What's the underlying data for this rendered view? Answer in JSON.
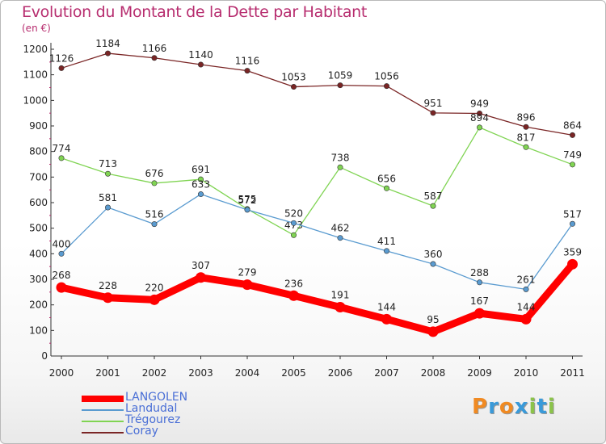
{
  "header": {
    "title": "Evolution du Montant de la Dette par Habitant",
    "subtitle": "(en €)"
  },
  "chart_data": {
    "type": "line",
    "title": "Evolution du Montant de la Dette par Habitant",
    "ylabel": "(en €)",
    "xlabel": "",
    "categories": [
      "2000",
      "2001",
      "2002",
      "2003",
      "2004",
      "2005",
      "2006",
      "2007",
      "2008",
      "2009",
      "2010",
      "2011"
    ],
    "ylim": [
      0,
      1200
    ],
    "yticks": [
      0,
      100,
      200,
      300,
      400,
      500,
      600,
      700,
      800,
      900,
      1000,
      1100,
      1200
    ],
    "grid": false,
    "legend_position": "bottom-left",
    "series": [
      {
        "name": "Coray",
        "color": "#7a2525",
        "values": [
          1126,
          1184,
          1166,
          1140,
          1116,
          1053,
          1059,
          1056,
          951,
          949,
          896,
          864
        ]
      },
      {
        "name": "Trégourez",
        "color": "#80d453",
        "values": [
          774,
          713,
          676,
          691,
          575,
          473,
          738,
          656,
          587,
          894,
          817,
          749
        ]
      },
      {
        "name": "Landudal",
        "color": "#5a9bd0",
        "values": [
          400,
          581,
          516,
          633,
          572,
          520,
          462,
          411,
          360,
          288,
          261,
          517
        ]
      },
      {
        "name": "LANGOLEN",
        "color": "#ff0000",
        "values": [
          268,
          228,
          220,
          307,
          279,
          236,
          191,
          144,
          95,
          167,
          144,
          359
        ]
      }
    ]
  },
  "legend": {
    "items": [
      {
        "label": "LANGOLEN",
        "color": "#ff0000"
      },
      {
        "label": "Landudal",
        "color": "#5a9bd0"
      },
      {
        "label": "Trégourez",
        "color": "#80d453"
      },
      {
        "label": "Coray",
        "color": "#7a2525"
      }
    ]
  },
  "logo": {
    "letters": [
      "P",
      "r",
      "o",
      "x",
      "i",
      "t",
      "i"
    ],
    "colors": [
      "#f08a22",
      "#3a9ad9",
      "#f08a22",
      "#3a9ad9",
      "#8bc34a",
      "#3a9ad9",
      "#8bc34a"
    ]
  }
}
